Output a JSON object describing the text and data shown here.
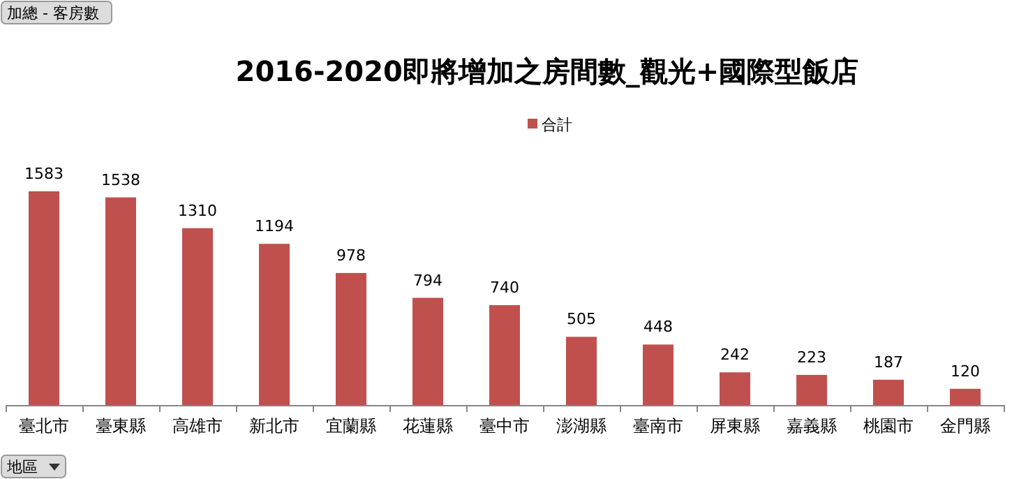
{
  "chart_data": {
    "type": "bar",
    "title": "2016-2020即將增加之房間數_觀光+國際型飯店",
    "categories": [
      "臺北市",
      "臺東縣",
      "高雄市",
      "新北市",
      "宜蘭縣",
      "花蓮縣",
      "臺中市",
      "澎湖縣",
      "臺南市",
      "屏東縣",
      "嘉義縣",
      "桃園市",
      "金門縣"
    ],
    "series": [
      {
        "name": "合計",
        "color": "#c0504d",
        "values": [
          1583,
          1538,
          1310,
          1194,
          978,
          794,
          740,
          505,
          448,
          242,
          223,
          187,
          120
        ]
      }
    ],
    "data_labels": true,
    "legend": "top",
    "annotations": [
      "加總 - 客房數",
      "地區"
    ]
  }
}
